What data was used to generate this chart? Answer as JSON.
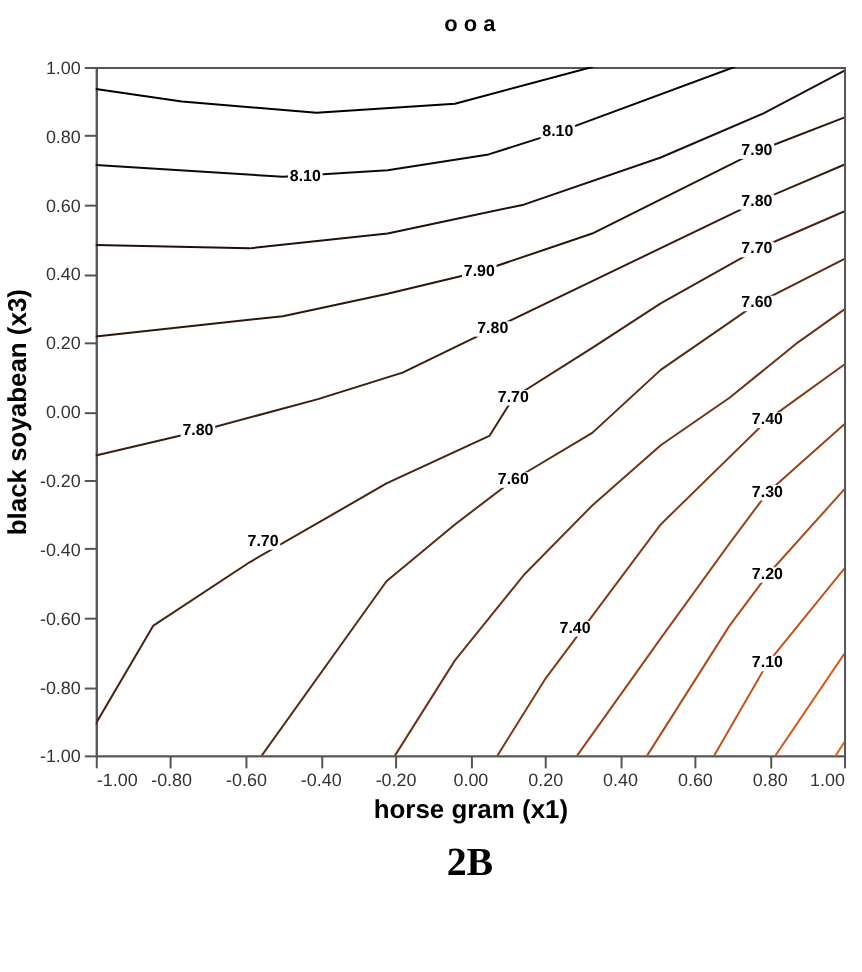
{
  "chart_data": {
    "type": "line",
    "title": "o o a",
    "xlabel": "horse gram (x1)",
    "ylabel": "black soyabean (x3)",
    "xlim": [
      -1,
      1
    ],
    "ylim": [
      -1,
      1
    ],
    "xticks": [
      {
        "value": -1,
        "label": "-1.00"
      },
      {
        "value": -0.8,
        "label": "-0.80"
      },
      {
        "value": -0.6,
        "label": "-0.60"
      },
      {
        "value": -0.4,
        "label": "-0.40"
      },
      {
        "value": -0.2,
        "label": "-0.20"
      },
      {
        "value": 0,
        "label": "0.00"
      },
      {
        "value": 0.2,
        "label": "0.20"
      },
      {
        "value": 0.4,
        "label": "0.40"
      },
      {
        "value": 0.6,
        "label": "0.60"
      },
      {
        "value": 0.8,
        "label": "0.80"
      },
      {
        "value": 1,
        "label": "1.00"
      }
    ],
    "yticks": [
      {
        "value": -1,
        "label": "-1.00"
      },
      {
        "value": -0.8,
        "label": "-0.80"
      },
      {
        "value": -0.6,
        "label": "-0.60"
      },
      {
        "value": -0.4,
        "label": "-0.40"
      },
      {
        "value": -0.2,
        "label": "-0.20"
      },
      {
        "value": 0,
        "label": "0.00"
      },
      {
        "value": 0.2,
        "label": "0.20"
      },
      {
        "value": 0.4,
        "label": "0.40"
      },
      {
        "value": 0.6,
        "label": "0.60"
      },
      {
        "value": 0.8,
        "label": "0.80"
      },
      {
        "value": 1,
        "label": "1.00"
      }
    ],
    "grid": false,
    "legend": false,
    "marker": "none",
    "line_style": "solid",
    "series": [
      {
        "color": "#000000",
        "x": [
          -1,
          -0.77,
          -0.41,
          -0.04,
          0.327
        ],
        "values": [
          0.936,
          0.9,
          0.867,
          0.893,
          1.0
        ]
      },
      {
        "color": "#100806",
        "x": [
          -1,
          -0.5,
          -0.22,
          0.05,
          0.235,
          0.707
        ],
        "values": [
          0.715,
          0.681,
          0.7,
          0.746,
          0.81,
          1.0
        ]
      },
      {
        "color": "#20100a",
        "x": [
          -1,
          -0.59,
          -0.22,
          0.144,
          0.51,
          0.786,
          1
        ],
        "values": [
          0.483,
          0.473,
          0.516,
          0.6,
          0.737,
          0.866,
          0.989
        ]
      },
      {
        "color": "#2e160c",
        "x": [
          -1,
          -0.5,
          -0.22,
          0.025,
          0.327,
          0.767,
          1
        ],
        "values": [
          0.217,
          0.276,
          0.341,
          0.405,
          0.516,
          0.755,
          0.853
        ]
      },
      {
        "color": "#3c1c0e",
        "x": [
          -1,
          -0.727,
          -0.406,
          -0.18,
          0.061,
          0.327,
          0.767,
          1
        ],
        "values": [
          -0.129,
          -0.059,
          0.035,
          0.112,
          0.239,
          0.378,
          0.608,
          0.716
        ]
      },
      {
        "color": "#4a2210",
        "x": [
          -1,
          -0.846,
          -0.589,
          -0.223,
          0.052,
          0.116,
          0.327,
          0.51,
          0.767,
          1
        ],
        "values": [
          -0.908,
          -0.623,
          -0.439,
          -0.21,
          -0.072,
          0.039,
          0.184,
          0.313,
          0.47,
          0.58
        ]
      },
      {
        "color": "#5c2a12",
        "x": [
          -0.556,
          -0.223,
          -0.04,
          0.116,
          0.327,
          0.51,
          0.694,
          0.767,
          1
        ],
        "values": [
          -1,
          -0.494,
          -0.329,
          -0.2,
          -0.063,
          0.12,
          0.258,
          0.313,
          0.442
        ]
      },
      {
        "color": "#703214",
        "x": [
          -0.2,
          -0.04,
          0.144,
          0.327,
          0.51,
          0.694,
          0.877,
          1
        ],
        "values": [
          -1,
          -0.724,
          -0.476,
          -0.274,
          -0.099,
          0.039,
          0.2,
          0.295
        ]
      },
      {
        "color": "#843a16",
        "x": [
          0.074,
          0.2,
          0.51,
          0.795,
          1
        ],
        "values": [
          -1,
          -0.78,
          -0.329,
          -0.026,
          0.135
        ]
      },
      {
        "color": "#984218",
        "x": [
          0.287,
          0.51,
          0.694,
          0.795,
          1
        ],
        "values": [
          -1,
          -0.66,
          -0.384,
          -0.237,
          -0.039
        ]
      },
      {
        "color": "#ae4a1a",
        "x": [
          0.474,
          0.694,
          0.795,
          1
        ],
        "values": [
          -1,
          -0.623,
          -0.476,
          -0.228
        ]
      },
      {
        "color": "#c4521c",
        "x": [
          0.653,
          0.795,
          1
        ],
        "values": [
          -1,
          -0.733,
          -0.458
        ]
      },
      {
        "color": "#d85a1e",
        "x": [
          0.817,
          1
        ],
        "values": [
          -1,
          -0.706
        ]
      },
      {
        "color": "#ec6420",
        "x": [
          0.978,
          1
        ],
        "values": [
          -1,
          -0.963
        ]
      }
    ],
    "annotations": [
      {
        "text": "8.10",
        "x": -0.44,
        "y": 0.68
      },
      {
        "text": "8.10",
        "x": 0.235,
        "y": 0.81
      },
      {
        "text": "7.90",
        "x": 0.025,
        "y": 0.405
      },
      {
        "text": "7.90",
        "x": 0.767,
        "y": 0.755
      },
      {
        "text": "7.80",
        "x": 0.061,
        "y": 0.239
      },
      {
        "text": "7.80",
        "x": 0.767,
        "y": 0.608
      },
      {
        "text": "7.80",
        "x": -0.727,
        "y": -0.059
      },
      {
        "text": "7.70",
        "x": 0.116,
        "y": 0.039
      },
      {
        "text": "7.70",
        "x": 0.767,
        "y": 0.47
      },
      {
        "text": "7.70",
        "x": -0.553,
        "y": -0.38
      },
      {
        "text": "7.60",
        "x": 0.116,
        "y": -0.2
      },
      {
        "text": "7.60",
        "x": 0.767,
        "y": 0.313
      },
      {
        "text": "7.40",
        "x": 0.281,
        "y": -0.632
      },
      {
        "text": "7.40",
        "x": 0.795,
        "y": -0.026
      },
      {
        "text": "7.30",
        "x": 0.795,
        "y": -0.237
      },
      {
        "text": "7.20",
        "x": 0.795,
        "y": -0.476
      },
      {
        "text": "7.10",
        "x": 0.795,
        "y": -0.733
      },
      "2B"
    ]
  }
}
